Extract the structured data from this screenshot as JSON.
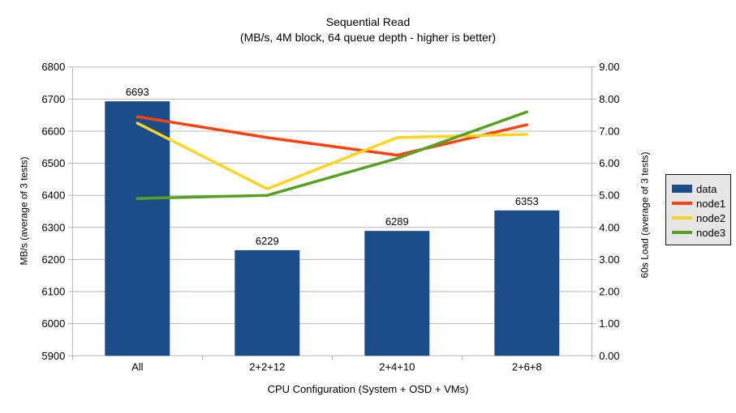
{
  "title": "Sequential Read",
  "subtitle": "(MB/s, 4M block, 64 queue depth - higher is better)",
  "chart_data": {
    "type": "combo-bar-line",
    "title": "Sequential Read",
    "subtitle": "(MB/s, 4M block, 64 queue depth - higher is better)",
    "categories": [
      "All",
      "2+2+12",
      "2+4+10",
      "2+6+8"
    ],
    "xlabel": "CPU Configuration (System + OSD + VMs)",
    "ylabel_left": "MB/s (average of 3 tests)",
    "ylabel_right": "60s Load (average of 3 tests)",
    "ylim_left": [
      5900,
      6800
    ],
    "ylim_right": [
      0.0,
      9.0
    ],
    "left_tick_labels": [
      "5900",
      "6000",
      "6100",
      "6200",
      "6300",
      "6400",
      "6500",
      "6600",
      "6700",
      "6800"
    ],
    "right_tick_labels": [
      "0.00",
      "1.00",
      "2.00",
      "3.00",
      "4.00",
      "5.00",
      "6.00",
      "7.00",
      "8.00",
      "9.00"
    ],
    "grid": "horizontal",
    "legend_position": "right",
    "series": [
      {
        "name": "data",
        "type": "bar",
        "axis": "left",
        "color": "#1b4d89",
        "values": [
          6693,
          6229,
          6289,
          6353
        ],
        "labels": [
          "6693",
          "6229",
          "6289",
          "6353"
        ]
      },
      {
        "name": "node1",
        "type": "line",
        "axis": "right",
        "color": "#ff420e",
        "values": [
          7.45,
          6.8,
          6.25,
          7.2
        ]
      },
      {
        "name": "node2",
        "type": "line",
        "axis": "right",
        "color": "#ffd320",
        "values": [
          7.25,
          5.2,
          6.8,
          6.9
        ]
      },
      {
        "name": "node3",
        "type": "line",
        "axis": "right",
        "color": "#57a122",
        "values": [
          4.9,
          5.0,
          6.15,
          7.6
        ]
      }
    ]
  },
  "colors": {
    "grid": "#b6b6b6",
    "axis": "#b6b6b6",
    "text": "#000000",
    "background": "#ffffff",
    "legend_bg": "#e6e6e6",
    "legend_border": "#111111"
  }
}
